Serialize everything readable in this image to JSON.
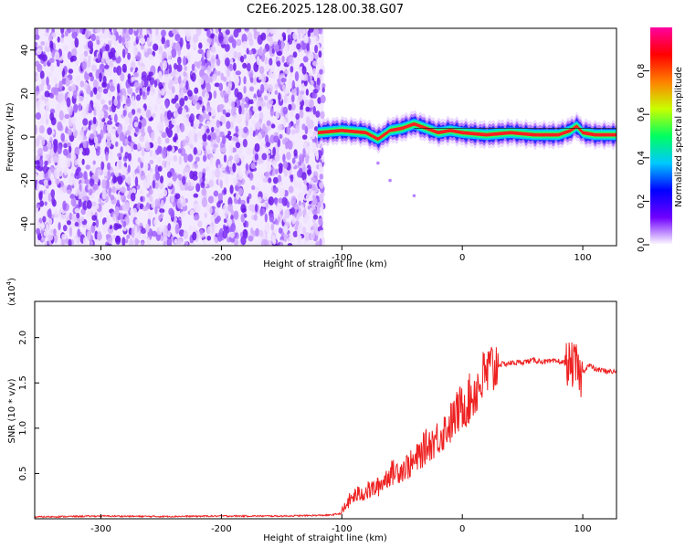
{
  "figure": {
    "title": "C2E6.2025.128.00.38.G07"
  },
  "chart_data": [
    {
      "type": "heatmap",
      "xlabel": "Height of straight line (km)",
      "ylabel": "Frequency (Hz)",
      "xlim": [
        -355,
        128
      ],
      "ylim": [
        -50,
        50
      ],
      "xticks": [
        -300,
        -200,
        -100,
        0,
        100
      ],
      "xtick_labels": [
        "-300",
        "-200",
        "-100",
        "0",
        "100"
      ],
      "yticks": [
        -40,
        -20,
        0,
        20,
        40
      ],
      "ytick_labels": [
        "-40",
        "-20",
        "0",
        "20",
        "40"
      ],
      "noise_region_x": [
        -355,
        -115
      ],
      "signal_region_x": [
        -120,
        128
      ],
      "signal_track": {
        "x": [
          -120,
          -100,
          -80,
          -70,
          -60,
          -50,
          -40,
          -30,
          -20,
          -10,
          0,
          20,
          40,
          60,
          80,
          90,
          95,
          100,
          110,
          128
        ],
        "y": [
          2,
          3,
          2,
          -1,
          3,
          4,
          6,
          4,
          2,
          3,
          2,
          1,
          2,
          1,
          1,
          3,
          5,
          2,
          1,
          1
        ]
      },
      "colorbar": {
        "label": "Normalized spectral amplitude",
        "range": [
          0,
          1
        ],
        "ticks": [
          0.0,
          0.2,
          0.4,
          0.6,
          0.8
        ],
        "tick_labels": [
          "0.0",
          "0.2",
          "0.4",
          "0.6",
          "0.8"
        ],
        "colormap": [
          "#ffffff",
          "#7000ff",
          "#0000ff",
          "#00c8ff",
          "#00ff60",
          "#c8ff00",
          "#ff8000",
          "#ff0000",
          "#ff00a0"
        ]
      },
      "grid": false
    },
    {
      "type": "line",
      "xlabel": "Height of straight line (km)",
      "ylabel": "SNR (10 * v/v)",
      "scale_label": "(x10",
      "scale_exponent": "4",
      "scale_suffix": ")",
      "xlim": [
        -355,
        128
      ],
      "ylim": [
        0,
        2.4
      ],
      "xticks": [
        -300,
        -200,
        -100,
        0,
        100
      ],
      "xtick_labels": [
        "-300",
        "-200",
        "-100",
        "0",
        "100"
      ],
      "yticks": [
        0.5,
        1.0,
        1.5,
        2.0
      ],
      "ytick_labels": [
        "0.5",
        "1.0",
        "1.5",
        "2.0"
      ],
      "series": [
        {
          "color": "#ee2020",
          "x": [
            -355,
            -300,
            -250,
            -200,
            -150,
            -110,
            -100,
            -95,
            -90,
            -80,
            -70,
            -60,
            -50,
            -40,
            -30,
            -20,
            -10,
            -5,
            0,
            5,
            10,
            15,
            20,
            25,
            30,
            40,
            50,
            60,
            70,
            80,
            85,
            90,
            95,
            98,
            100,
            105,
            110,
            120,
            128
          ],
          "y": [
            0.02,
            0.03,
            0.025,
            0.03,
            0.03,
            0.04,
            0.06,
            0.18,
            0.25,
            0.3,
            0.35,
            0.5,
            0.55,
            0.62,
            0.8,
            0.9,
            1.05,
            1.15,
            1.25,
            1.3,
            1.4,
            1.5,
            1.6,
            1.65,
            1.7,
            1.72,
            1.73,
            1.75,
            1.73,
            1.74,
            1.72,
            1.7,
            1.68,
            1.55,
            1.62,
            1.7,
            1.65,
            1.63,
            1.62
          ]
        }
      ],
      "grid": false
    }
  ]
}
